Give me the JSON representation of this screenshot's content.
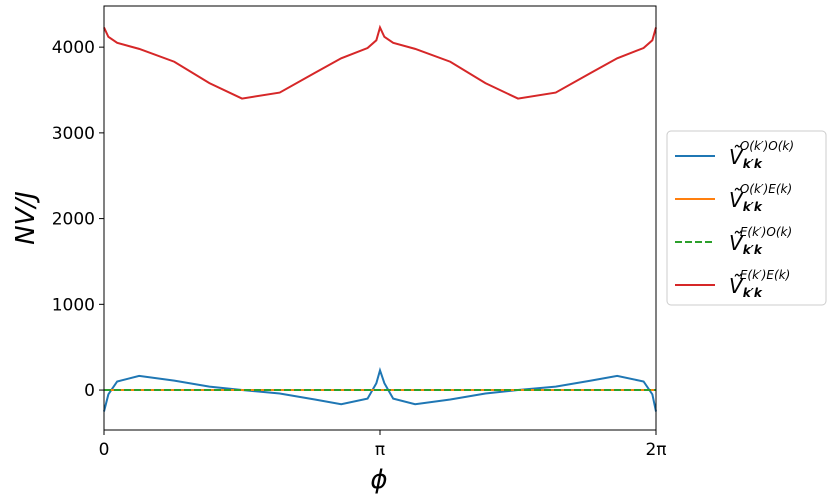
{
  "chart_data": {
    "type": "line",
    "xlabel": "ϕ",
    "ylabel": "NV/J",
    "xlim": [
      0,
      6.28319
    ],
    "ylim": [
      -466,
      4480
    ],
    "xticks": [
      0,
      {
        "value": 3.14159,
        "label": "π"
      },
      {
        "value": 6.28319,
        "label": "2π"
      }
    ],
    "yticks": [
      0,
      1000,
      2000,
      3000,
      4000
    ],
    "legend": "outside-right",
    "x": [
      0,
      0.05,
      0.15,
      0.4,
      0.8,
      1.2,
      1.5708,
      2.0,
      2.4,
      2.7,
      3.0,
      3.1,
      3.14159,
      3.19159,
      3.29159,
      3.54159,
      3.94159,
      4.34159,
      4.71239,
      5.14159,
      5.54159,
      5.84159,
      6.14159,
      6.24159,
      6.28319
    ],
    "series": [
      {
        "name": "Ṽ k′k O(k′)O(k)",
        "color": "#1f77b4",
        "dash": false,
        "values": [
          -250,
          -50,
          100,
          165,
          110,
          40,
          0,
          -40,
          -110,
          -165,
          -100,
          80,
          230,
          80,
          -100,
          -165,
          -110,
          -40,
          0,
          40,
          110,
          165,
          100,
          -50,
          -250
        ]
      },
      {
        "name": "Ṽ k′k O(k′)E(k)",
        "color": "#ff7f0e",
        "dash": false,
        "values": [
          0,
          0,
          0,
          0,
          0,
          0,
          0,
          0,
          0,
          0,
          0,
          0,
          0,
          0,
          0,
          0,
          0,
          0,
          0,
          0,
          0,
          0,
          0,
          0,
          0
        ]
      },
      {
        "name": "Ṽ k′k E(k′)O(k)",
        "color": "#2ca02c",
        "dash": true,
        "values": [
          0,
          0,
          0,
          0,
          0,
          0,
          0,
          0,
          0,
          0,
          0,
          0,
          0,
          0,
          0,
          0,
          0,
          0,
          0,
          0,
          0,
          0,
          0,
          0,
          0
        ]
      },
      {
        "name": "Ṽ k′k E(k′)E(k)",
        "color": "#d62728",
        "dash": false,
        "values": [
          4230,
          4120,
          4050,
          3980,
          3830,
          3580,
          3400,
          3470,
          3700,
          3870,
          3990,
          4080,
          4230,
          4120,
          4050,
          3980,
          3830,
          3580,
          3400,
          3470,
          3700,
          3870,
          3990,
          4080,
          4230
        ]
      }
    ]
  }
}
